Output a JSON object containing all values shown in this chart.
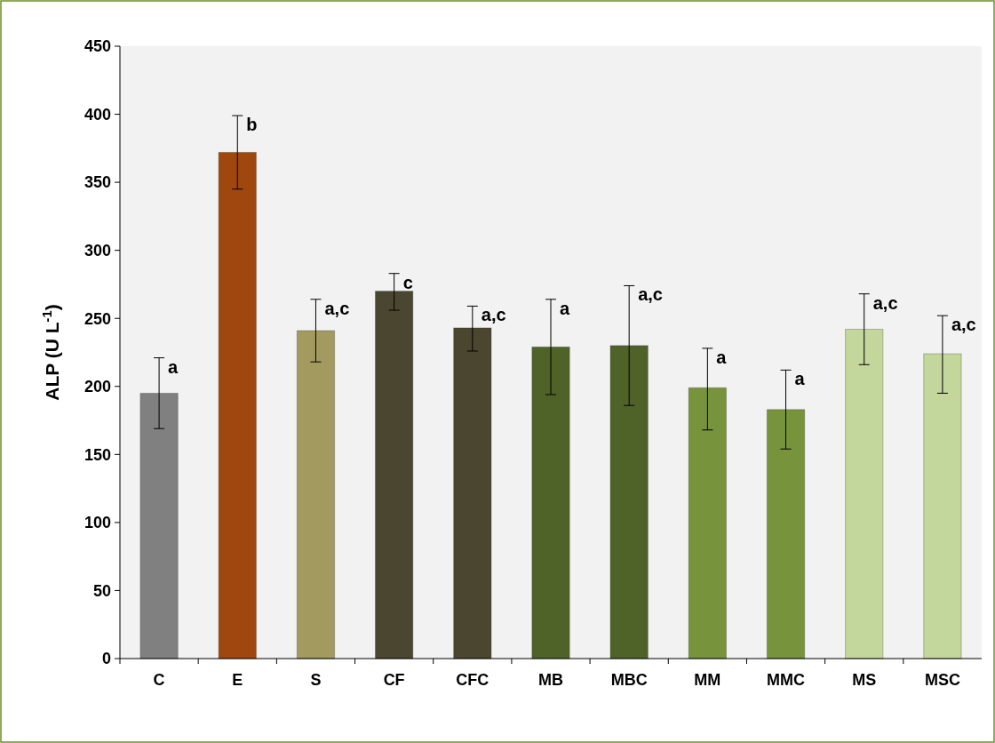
{
  "chart_data": {
    "type": "bar",
    "ylabel": "ALP (U L$^{-1}$)",
    "categories": [
      "C",
      "E",
      "S",
      "CF",
      "CFC",
      "MB",
      "MBC",
      "MM",
      "MMC",
      "MS",
      "MSC"
    ],
    "values": [
      195,
      372,
      241,
      270,
      243,
      229,
      230,
      199,
      183,
      242,
      224
    ],
    "colors": [
      "#808080",
      "#a0470f",
      "#a39a60",
      "#4a4630",
      "#4a4630",
      "#4f6228",
      "#4f6228",
      "#77933c",
      "#77933c",
      "#c3d69b",
      "#c3d69b"
    ],
    "errors": [
      [
        169,
        221
      ],
      [
        345,
        399
      ],
      [
        218,
        264
      ],
      [
        256,
        283
      ],
      [
        226,
        259
      ],
      [
        194,
        264
      ],
      [
        186,
        274
      ],
      [
        168,
        228
      ],
      [
        154,
        212
      ],
      [
        216,
        268
      ],
      [
        195,
        252
      ]
    ],
    "ylim": [
      0,
      450
    ],
    "yticks": [
      0,
      50,
      100,
      150,
      200,
      250,
      300,
      350,
      400,
      450
    ],
    "grid": false,
    "annotations": [
      {
        "text": "a",
        "x": "C",
        "y": 221
      },
      {
        "text": "b",
        "x": "E",
        "y": 399
      },
      {
        "text": "a,c",
        "x": "S",
        "y": 264
      },
      {
        "text": "c",
        "x": "CF",
        "y": 283
      },
      {
        "text": "a,c",
        "x": "CFC",
        "y": 259
      },
      {
        "text": "a",
        "x": "MB",
        "y": 264
      },
      {
        "text": "a,c",
        "x": "MBC",
        "y": 274
      },
      {
        "text": "a",
        "x": "MM",
        "y": 228
      },
      {
        "text": "a",
        "x": "MMC",
        "y": 212
      },
      {
        "text": "a,c",
        "x": "MS",
        "y": 268
      },
      {
        "text": "a,c",
        "x": "MSC",
        "y": 252
      }
    ]
  }
}
